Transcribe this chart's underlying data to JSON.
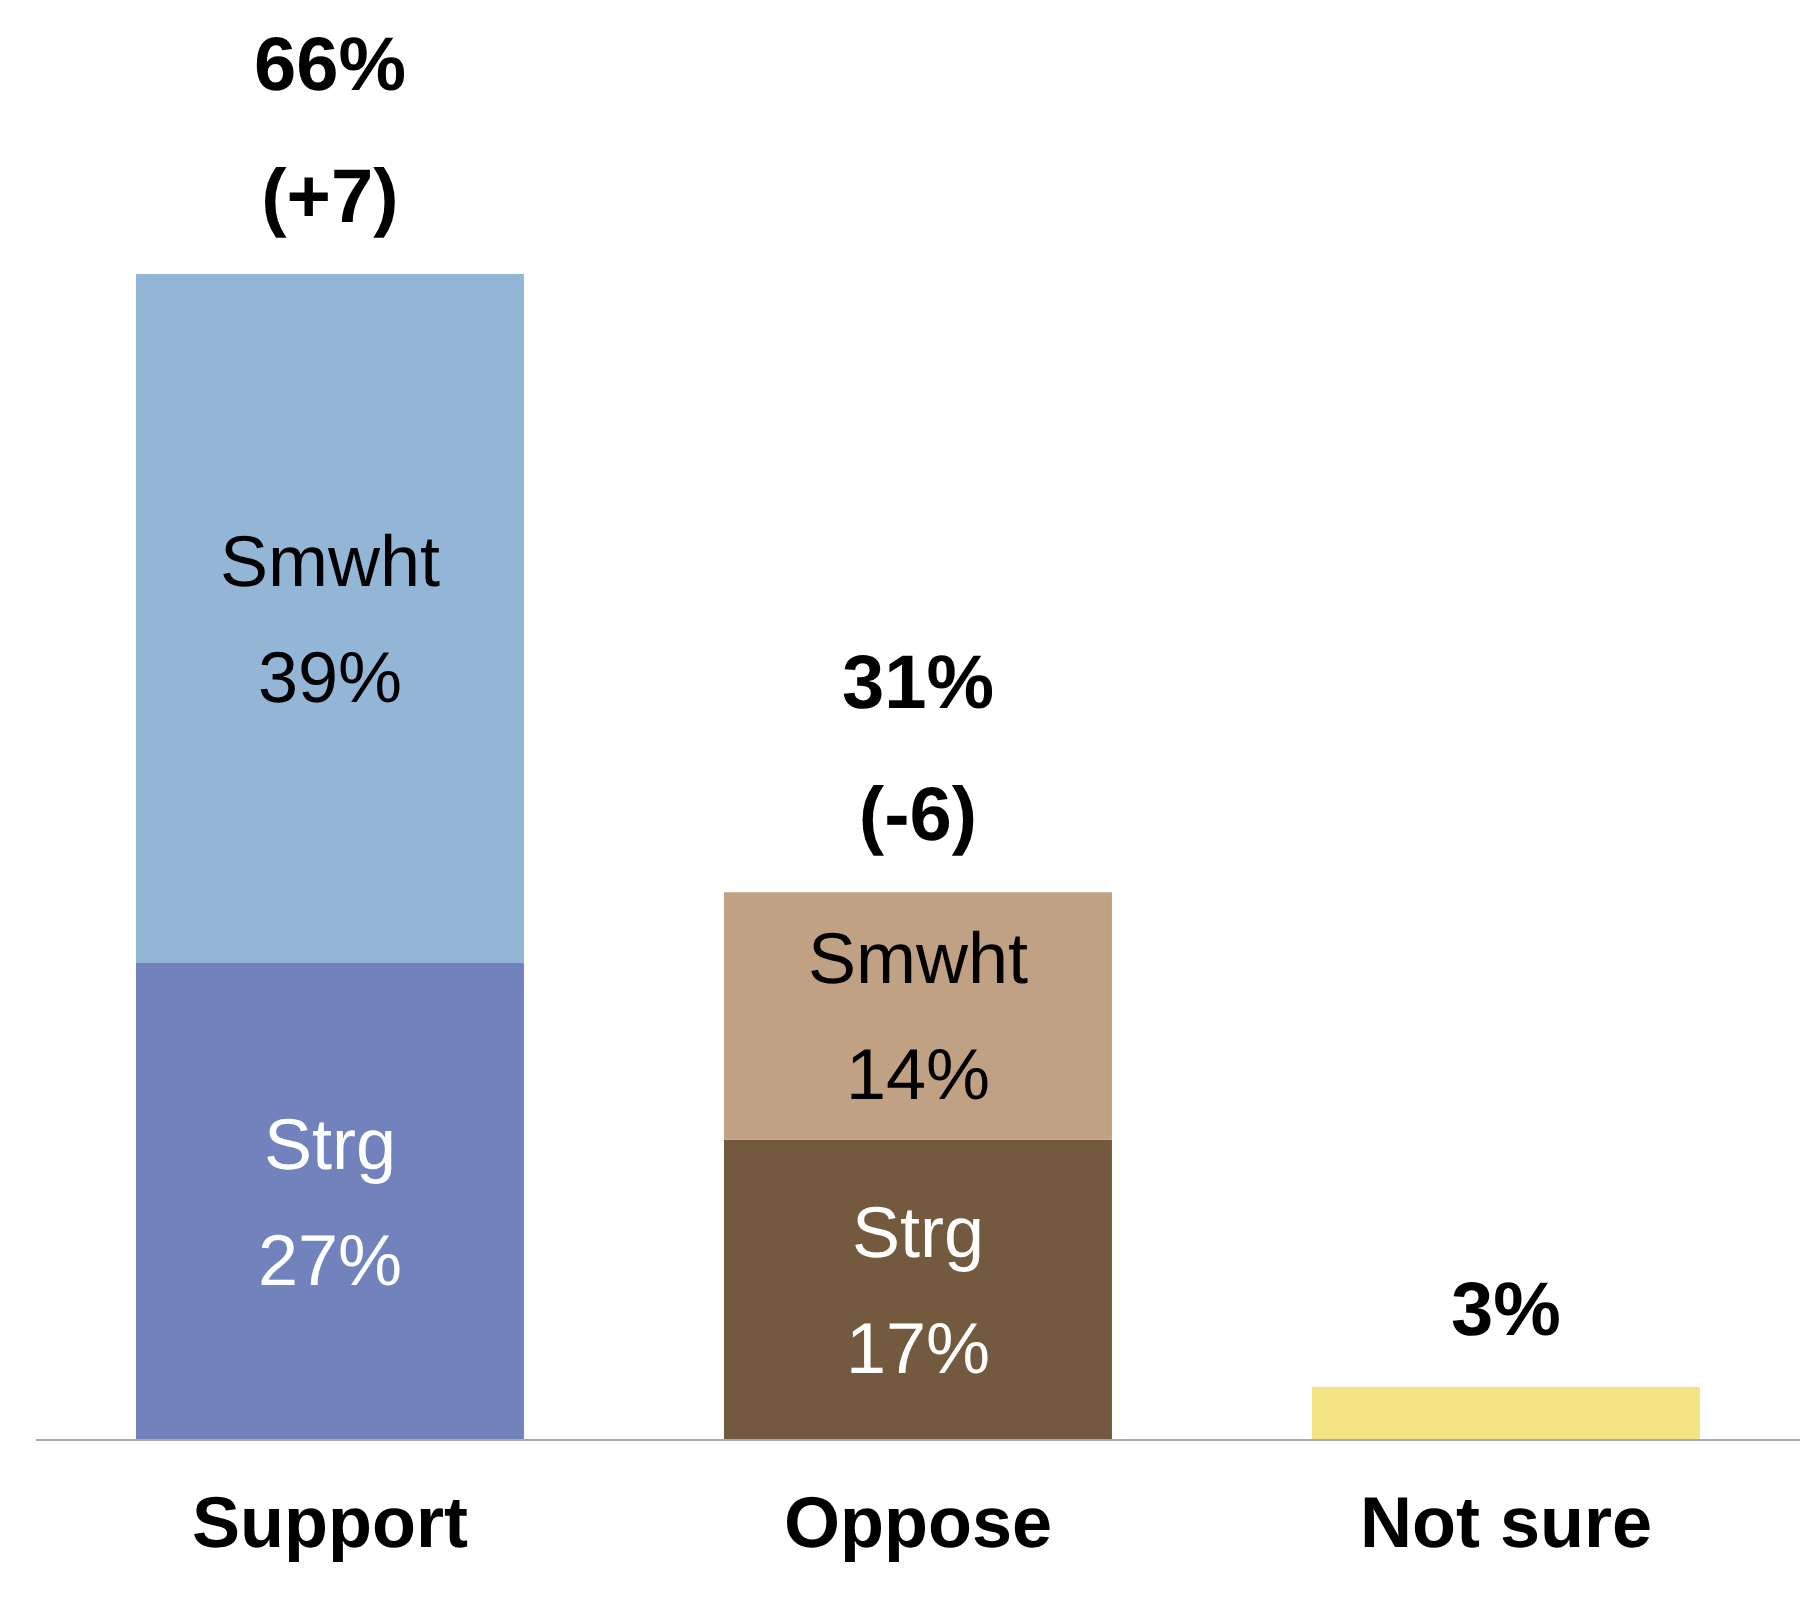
{
  "chart_data": {
    "type": "bar",
    "stacked": true,
    "categories": [
      "Support",
      "Oppose",
      "Not sure"
    ],
    "series": [
      {
        "name": "Strg",
        "colors": [
          "#7282bc",
          "#735a3f",
          null
        ],
        "values": [
          27,
          17,
          null
        ],
        "value_labels": [
          "27%",
          "17%",
          null
        ]
      },
      {
        "name": "Smwht",
        "colors": [
          "#94b6d6",
          "#c0a183",
          null
        ],
        "values": [
          39,
          14,
          null
        ],
        "value_labels": [
          "39%",
          "14%",
          null
        ]
      },
      {
        "color": "#f3e384",
        "values": [
          null,
          null,
          3
        ]
      }
    ],
    "totals": [
      "66% (+7)",
      "31% (-6)",
      "3%"
    ],
    "legend": false,
    "grid": false
  }
}
